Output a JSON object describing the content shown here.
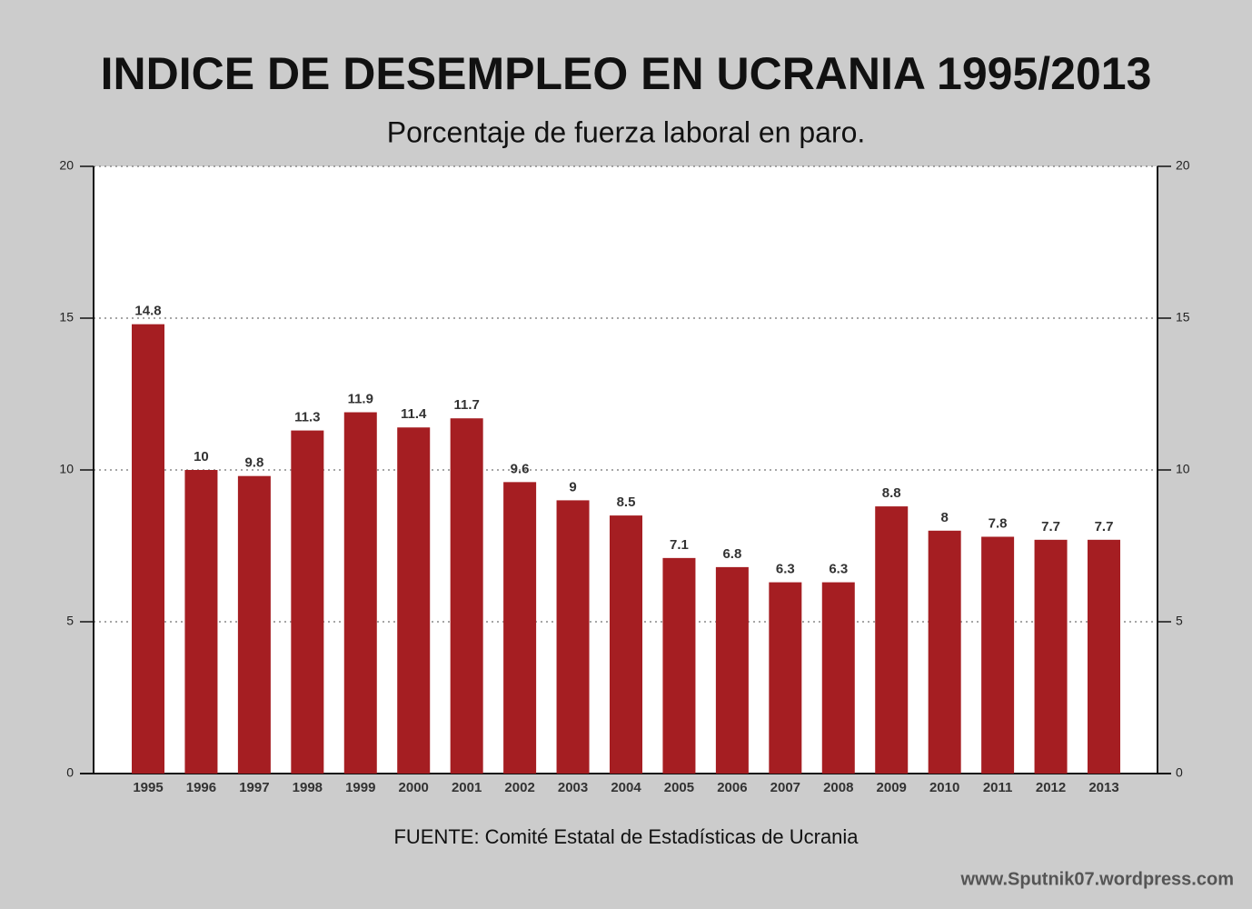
{
  "chart_data": {
    "type": "bar",
    "title": "INDICE DE DESEMPLEO EN UCRANIA 1995/2013",
    "subtitle": "Porcentaje de fuerza laboral en paro.",
    "source": "FUENTE: Comité Estatal de Estadísticas de Ucrania",
    "watermark": "www.Sputnik07.wordpress.com",
    "categories": [
      "1995",
      "1996",
      "1997",
      "1998",
      "1999",
      "2000",
      "2001",
      "2002",
      "2003",
      "2004",
      "2005",
      "2006",
      "2007",
      "2008",
      "2009",
      "2010",
      "2011",
      "2012",
      "2013"
    ],
    "values": [
      14.8,
      10,
      9.8,
      11.3,
      11.9,
      11.4,
      11.7,
      9.6,
      9,
      8.5,
      7.1,
      6.8,
      6.3,
      6.3,
      8.8,
      8,
      7.8,
      7.7,
      7.7
    ],
    "color": "#a51e22",
    "ylim": [
      0,
      20
    ],
    "yticks": [
      0,
      5,
      10,
      15,
      20
    ],
    "y2lim": [
      0,
      20
    ],
    "y2ticks": [
      0,
      5,
      10,
      15,
      20
    ],
    "grid": true
  }
}
